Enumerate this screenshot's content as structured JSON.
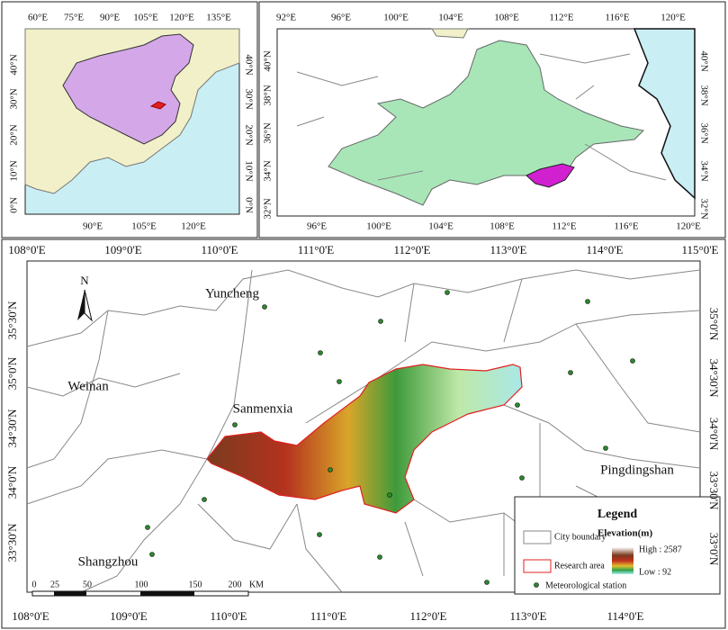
{
  "inset_china": {
    "top_lon": [
      "60°E",
      "75°E",
      "90°E",
      "105°E",
      "120°E",
      "135°E"
    ],
    "bottom_lon": [
      "90°E",
      "105°E",
      "120°E"
    ],
    "left_lat": [
      "40°N",
      "30°N",
      "20°N",
      "10°N",
      "0°N"
    ],
    "right_lat": [
      "40°N",
      "30°N",
      "20°N",
      "10°N",
      "0°N"
    ]
  },
  "inset_basin": {
    "top_lon": [
      "92°E",
      "96°E",
      "100°E",
      "104°E",
      "108°E",
      "112°E",
      "116°E",
      "120°E"
    ],
    "bottom_lon": [
      "96°E",
      "100°E",
      "104°E",
      "108°E",
      "112°E",
      "116°E",
      "120°E"
    ],
    "left_lat": [
      "40°N",
      "38°N",
      "36°N",
      "34°N",
      "32°N"
    ],
    "right_lat": [
      "40°N",
      "38°N",
      "36°N",
      "34°N",
      "32°N"
    ]
  },
  "main_map": {
    "top_lon": [
      "108°0'E",
      "109°0'E",
      "110°0'E",
      "111°0'E",
      "112°0'E",
      "113°0'E",
      "114°0'E",
      "115°0'E"
    ],
    "bottom_lon": [
      "108°0'E",
      "109°0'E",
      "110°0'E",
      "111°0'E",
      "112°0'E",
      "113°0'E",
      "114°0'E"
    ],
    "left_lat": [
      "35°30'N",
      "35°0'N",
      "34°30'N",
      "34°0'N",
      "33°30'N"
    ],
    "right_lat": [
      "35°0'N",
      "34°30'N",
      "34°0'N",
      "33°30'N",
      "33°0'N"
    ],
    "north": "N",
    "cities": [
      "Yuncheng",
      "Weinan",
      "Sanmenxia",
      "Pingdingshan",
      "Shangzhou"
    ],
    "scale_labels": [
      "0",
      "25",
      "50",
      "100",
      "150",
      "200",
      "KM"
    ],
    "legend": {
      "title": "Legend",
      "city_boundary": "City boundary",
      "elevation": "Elevation(m)",
      "high": "High : 2587",
      "research_area": "Research area",
      "low": "Low : 92",
      "station": "Meteorological station"
    }
  }
}
